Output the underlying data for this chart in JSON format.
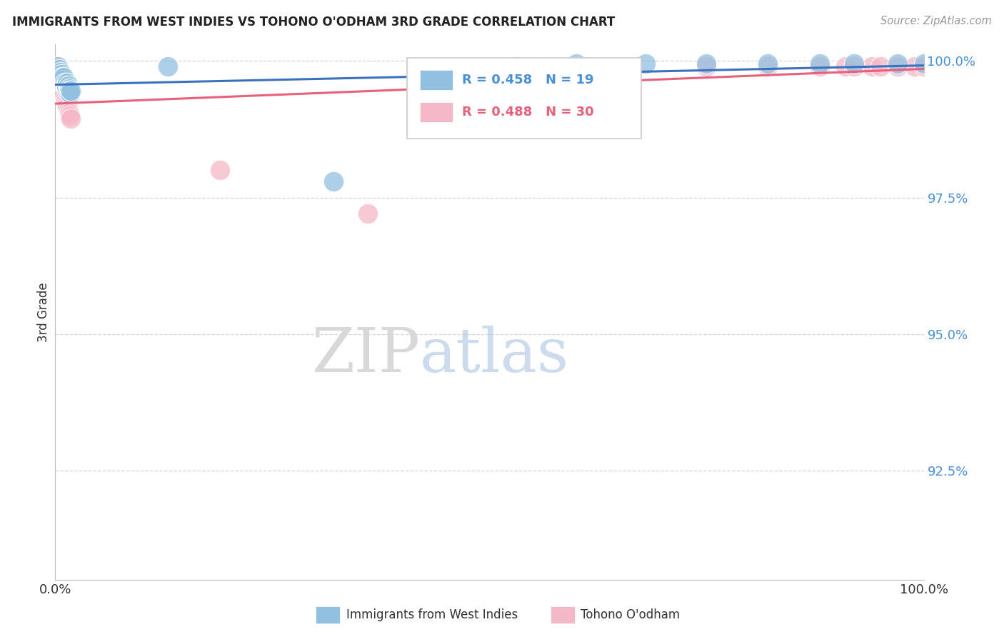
{
  "title": "IMMIGRANTS FROM WEST INDIES VS TOHONO O'ODHAM 3RD GRADE CORRELATION CHART",
  "source": "Source: ZipAtlas.com",
  "ylabel": "3rd Grade",
  "blue_color": "#92c0e0",
  "pink_color": "#f5b8c8",
  "blue_line_color": "#3a72c0",
  "pink_line_color": "#e8607a",
  "legend_text_color_blue": "#4a90d9",
  "legend_text_color_pink": "#e8607a",
  "ytick_color": "#4a90d9",
  "grid_color": "#cccccc",
  "blue_scatter_x": [
    0.003,
    0.005,
    0.006,
    0.007,
    0.008,
    0.009,
    0.01,
    0.01,
    0.011,
    0.012,
    0.013,
    0.013,
    0.014,
    0.015,
    0.016,
    0.016,
    0.017,
    0.018,
    0.32
  ],
  "blue_scatter_y": [
    0.999,
    0.9985,
    0.998,
    0.9975,
    0.997,
    0.9965,
    0.996,
    0.997,
    0.996,
    0.9955,
    0.995,
    0.9955,
    0.996,
    0.9955,
    0.995,
    0.9945,
    0.994,
    0.9945,
    0.978
  ],
  "blue_scatter_top_x": [
    0.13,
    0.6,
    0.68,
    0.75,
    0.82,
    0.88,
    0.92,
    0.97,
    1.0
  ],
  "blue_scatter_top_y": [
    0.999,
    0.9995,
    0.9995,
    0.9995,
    0.9995,
    0.9995,
    0.9995,
    0.9995,
    0.9995
  ],
  "pink_scatter_x": [
    0.003,
    0.004,
    0.005,
    0.006,
    0.007,
    0.008,
    0.009,
    0.01,
    0.011,
    0.012,
    0.013,
    0.014,
    0.015,
    0.016,
    0.017,
    0.018,
    0.19,
    0.36,
    0.53,
    0.75,
    0.82,
    0.88,
    0.91,
    0.92,
    0.94,
    0.95,
    0.97,
    0.99,
    1.0
  ],
  "pink_scatter_y": [
    0.999,
    0.998,
    0.9975,
    0.9965,
    0.9955,
    0.9945,
    0.994,
    0.9935,
    0.993,
    0.9925,
    0.992,
    0.9915,
    0.991,
    0.9905,
    0.99,
    0.9895,
    0.98,
    0.972,
    0.999,
    0.999,
    0.999,
    0.999,
    0.999,
    0.999,
    0.999,
    0.999,
    0.999,
    0.999,
    0.999
  ],
  "xlim": [
    0.0,
    1.0
  ],
  "ylim": [
    0.905,
    1.003
  ],
  "yticks": [
    1.0,
    0.975,
    0.95,
    0.925
  ],
  "ytick_labels": [
    "100.0%",
    "97.5%",
    "95.0%",
    "92.5%"
  ]
}
